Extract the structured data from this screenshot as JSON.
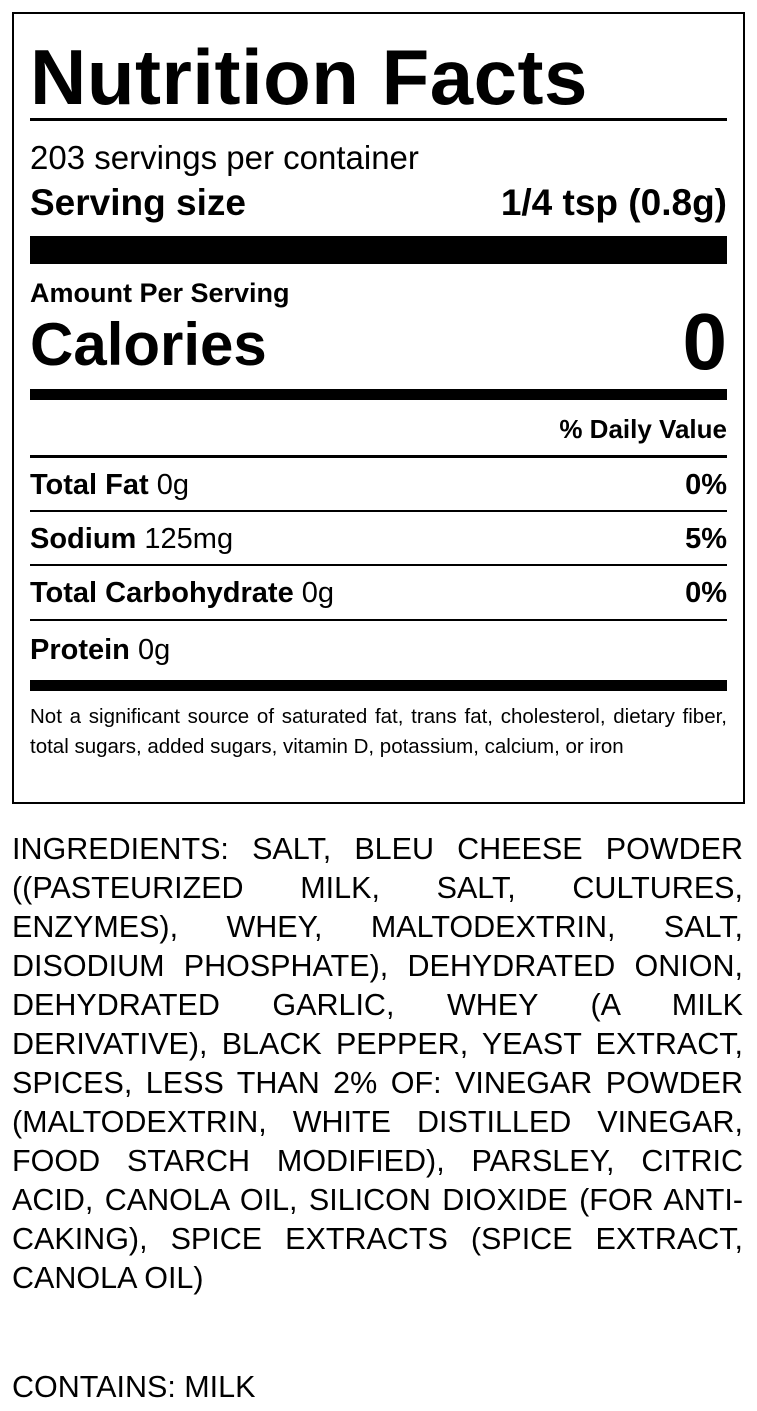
{
  "label": {
    "title": "Nutrition Facts",
    "servings_per_container": "203 servings per container",
    "serving_size_label": "Serving size",
    "serving_size_value": "1/4 tsp (0.8g)",
    "amount_per_serving": "Amount Per Serving",
    "calories_label": "Calories",
    "calories_value": "0",
    "daily_value_header": "% Daily Value",
    "nutrients": [
      {
        "name": "Total Fat",
        "amount": "0g",
        "dv": "0%"
      },
      {
        "name": "Sodium",
        "amount": "125mg",
        "dv": "5%"
      },
      {
        "name": "Total Carbohydrate",
        "amount": "0g",
        "dv": "0%"
      },
      {
        "name": "Protein",
        "amount": "0g",
        "dv": ""
      }
    ],
    "footnote": "Not a significant source of saturated fat, trans fat, cholesterol, dietary fiber, total sugars, added sugars, vitamin D, potassium, calcium, or iron"
  },
  "ingredients": "INGREDIENTS: SALT, BLEU CHEESE POWDER ((PASTEURIZED MILK, SALT, CULTURES, ENZYMES), WHEY, MALTODEXTRIN, SALT, DISODIUM PHOSPHATE), DEHYDRATED ONION, DEHYDRATED GARLIC, WHEY (A MILK DERIVATIVE), BLACK PEPPER, YEAST EXTRACT, SPICES, LESS THAN 2% OF: VINEGAR POWDER (MALTODEXTRIN, WHITE DISTILLED VINEGAR, FOOD STARCH MODIFIED), PARSLEY, CITRIC ACID, CANOLA OIL, SILICON DIOXIDE (FOR ANTI-CAKING), SPICE EXTRACTS (SPICE EXTRACT, CANOLA OIL)",
  "contains": "CONTAINS: MILK"
}
